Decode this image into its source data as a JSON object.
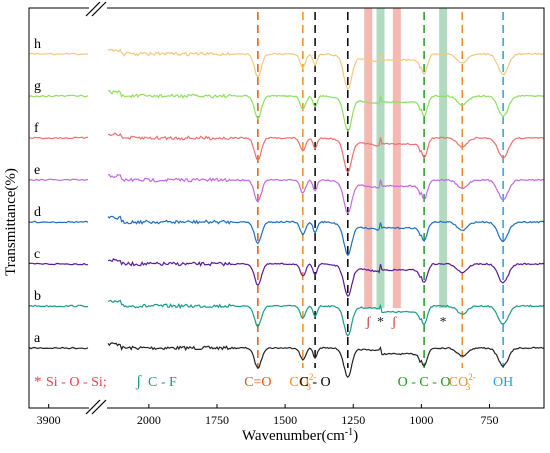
{
  "chart_data": {
    "type": "line",
    "xlabel": "Wavenumber(cm",
    "xlabel_sup": "-1",
    "xlabel_close": ")",
    "ylabel": "Transmittance(%)",
    "x_ticks": [
      "3900",
      "2000",
      "1750",
      "1500",
      "1250",
      "1000",
      "750"
    ],
    "x_tick_values": [
      3900,
      2000,
      1750,
      1500,
      1250,
      1000,
      750
    ],
    "xlim": [
      4000,
      550
    ],
    "x_break": [
      3700,
      2150
    ],
    "legend_text": {
      "si": "Si - O - Si;",
      "cf": "C - F",
      "si_star": "*",
      "cf_mark": "ʃ"
    },
    "bands": [
      {
        "name": "c-o-double",
        "x": 1600,
        "color": "#e05a0c",
        "label": "C=O"
      },
      {
        "name": "co3-a",
        "x": 1435,
        "color": "#f08a2a",
        "label": "CO",
        "sub": "3",
        "sup": "2-"
      },
      {
        "name": "c-o",
        "x": 1390,
        "color": "#000000",
        "label": "C - O"
      },
      {
        "name": "c-o-2",
        "x": 1270,
        "color": "#000000",
        "label": ""
      },
      {
        "name": "o-c-o",
        "x": 990,
        "color": "#1e9a1e",
        "label": "O - C - O"
      },
      {
        "name": "co3-b",
        "x": 850,
        "color": "#f08a2a",
        "label": "CO",
        "sub": "3",
        "sup": "2-"
      },
      {
        "name": "oh",
        "x": 700,
        "color": "#1ea3e6",
        "label": "OH"
      }
    ],
    "shaded_bands": [
      {
        "x": 1195,
        "color": "#f2a7a0"
      },
      {
        "x": 1150,
        "color": "#9ed1b0"
      },
      {
        "x": 1090,
        "color": "#f2a7a0"
      },
      {
        "x": 920,
        "color": "#9ed1b0"
      }
    ],
    "peak_marks": [
      {
        "text": "ʃ",
        "x": 1195,
        "color": "#c0392b"
      },
      {
        "text": "*",
        "x": 1150,
        "color": "#222222"
      },
      {
        "text": "ʃ",
        "x": 1100,
        "color": "#c0392b"
      },
      {
        "text": "*",
        "x": 920,
        "color": "#222222"
      }
    ],
    "series": [
      {
        "name": "a",
        "color": "#222222",
        "offset": 0.0
      },
      {
        "name": "b",
        "color": "#1a9a8a",
        "offset": 1.0
      },
      {
        "name": "c",
        "color": "#5a1a9a",
        "offset": 2.0
      },
      {
        "name": "d",
        "color": "#1e6fc0",
        "offset": 3.0
      },
      {
        "name": "e",
        "color": "#c06ae0",
        "offset": 4.0
      },
      {
        "name": "f",
        "color": "#f07070",
        "offset": 5.0
      },
      {
        "name": "g",
        "color": "#8ee060",
        "offset": 6.0
      },
      {
        "name": "h",
        "color": "#f5c880",
        "offset": 7.0
      }
    ]
  }
}
